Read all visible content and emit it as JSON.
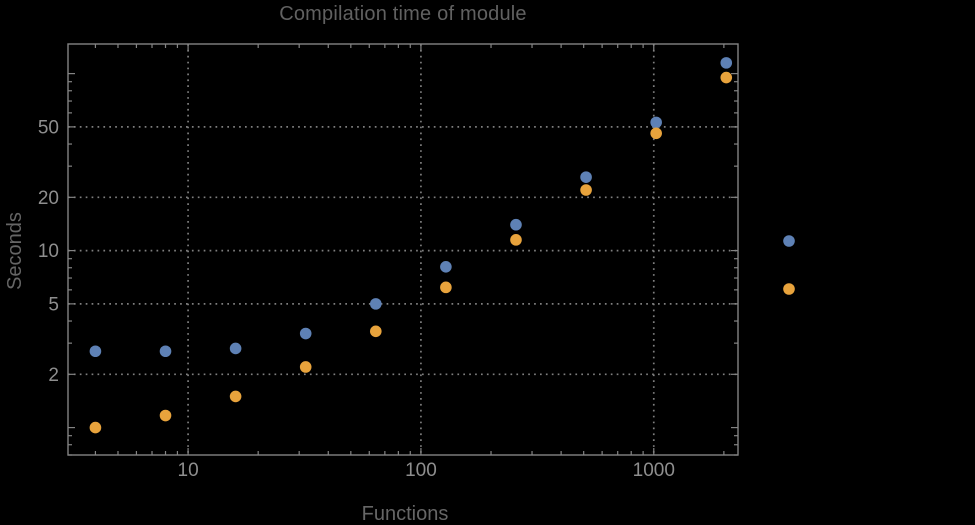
{
  "page": {
    "background": "#000000"
  },
  "chart_data": {
    "type": "scatter",
    "title": "Compilation time of module",
    "xlabel": "Functions",
    "ylabel": "Seconds",
    "x_scale": "log",
    "y_scale": "log",
    "xlim": [
      3.05,
      2300
    ],
    "ylim": [
      0.7,
      147
    ],
    "grid": true,
    "legend_position": "outside-right",
    "grid_x_values": [
      10,
      100,
      1000
    ],
    "grid_y_values": [
      2,
      5,
      10,
      20,
      50
    ],
    "x_ticks": [
      {
        "value": 10,
        "label": "10"
      },
      {
        "value": 100,
        "label": "100"
      },
      {
        "value": 1000,
        "label": "1000"
      }
    ],
    "y_ticks": [
      {
        "value": 1,
        "label": ""
      },
      {
        "value": 2,
        "label": "2"
      },
      {
        "value": 5,
        "label": "5"
      },
      {
        "value": 10,
        "label": "10"
      },
      {
        "value": 20,
        "label": "20"
      },
      {
        "value": 50,
        "label": "50"
      },
      {
        "value": 100,
        "label": ""
      }
    ],
    "x": [
      4,
      8,
      16,
      32,
      64,
      128,
      256,
      512,
      1024,
      2048
    ],
    "series": [
      {
        "name": "blue-series",
        "color": "#5E81B5",
        "values": [
          2.7,
          2.7,
          2.8,
          3.4,
          5.0,
          8.1,
          14.0,
          26.0,
          53.0,
          115.0
        ]
      },
      {
        "name": "orange-series",
        "color": "#E8A33C",
        "values": [
          1.0,
          1.17,
          1.5,
          2.2,
          3.5,
          6.2,
          11.5,
          22.0,
          46.0,
          95.0
        ]
      }
    ],
    "legend": {
      "marker_colors": [
        "#5E81B5",
        "#E8A33C"
      ],
      "labels_visible": false
    },
    "colors": {
      "background": "#000000",
      "frame": "#848484",
      "grid": "#7f7f7f",
      "tick_label": "#8e8e8e",
      "title": "#616161",
      "axis_label": "#666666"
    }
  }
}
